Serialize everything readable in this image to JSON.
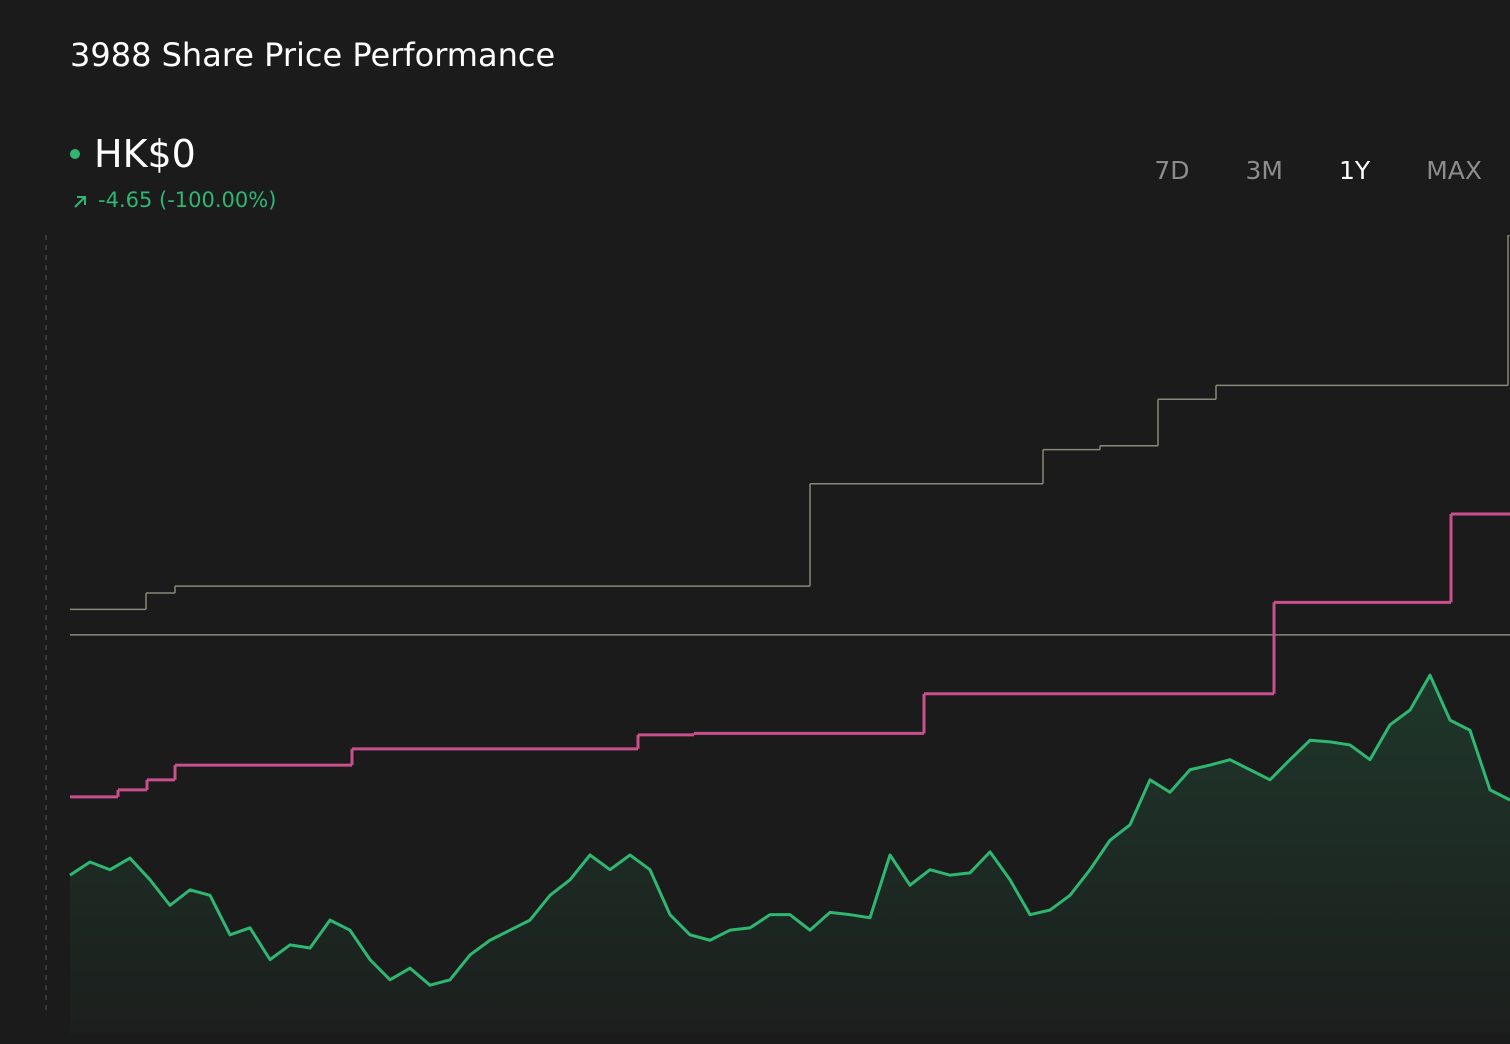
{
  "header": {
    "title": "3988 Share Price Performance",
    "price": "HK$0",
    "change": "-4.65 (-100.00%)"
  },
  "ranges": [
    "7D",
    "3M",
    "1Y",
    "MAX"
  ],
  "active_range": 2,
  "chart_data": {
    "type": "line",
    "xlim": [
      0,
      72
    ],
    "ylim": [
      0,
      100
    ],
    "reference_value": 48.4,
    "series": [
      {
        "color": "#2fb772",
        "fill": true,
        "values": [
          17.4,
          19.1,
          18.1,
          19.6,
          16.8,
          13.5,
          15.5,
          14.8,
          9.7,
          10.6,
          6.5,
          8.4,
          8.0,
          11.6,
          10.3,
          6.5,
          3.9,
          5.4,
          3.2,
          3.9,
          7.1,
          9.0,
          10.3,
          11.6,
          14.8,
          16.8,
          20.0,
          18.1,
          20.0,
          18.1,
          12.3,
          9.7,
          9.0,
          10.3,
          10.6,
          12.3,
          12.3,
          10.3,
          12.6,
          12.3,
          11.9,
          20.0,
          16.1,
          18.1,
          17.4,
          17.7,
          20.4,
          16.8,
          12.3,
          12.9,
          14.8,
          18.1,
          21.9,
          23.9,
          29.7,
          28.1,
          31.0,
          31.6,
          32.3,
          31.0,
          29.7,
          32.3,
          34.8,
          34.6,
          34.2,
          32.3,
          36.8,
          38.7,
          43.2,
          37.4,
          36.1,
          28.4,
          27.1
        ]
      },
      {
        "color": "#c8508c",
        "step": true,
        "x": [
          0,
          2.4,
          3.85,
          5.25,
          14.1,
          28.4,
          31.2,
          42.7,
          60.2,
          69.05
        ],
        "values": [
          27.5,
          28.4,
          29.7,
          31.6,
          33.7,
          35.5,
          35.7,
          40.8,
          52.6,
          64.0
        ]
      },
      {
        "color": "#8a8878",
        "step": true,
        "x": [
          0,
          3.8,
          5.25,
          37,
          48.65,
          51.5,
          54.4,
          57.3,
          71.9
        ],
        "values": [
          51.7,
          53.8,
          54.7,
          67.9,
          72.3,
          72.8,
          78.8,
          80.6,
          100
        ]
      }
    ]
  }
}
